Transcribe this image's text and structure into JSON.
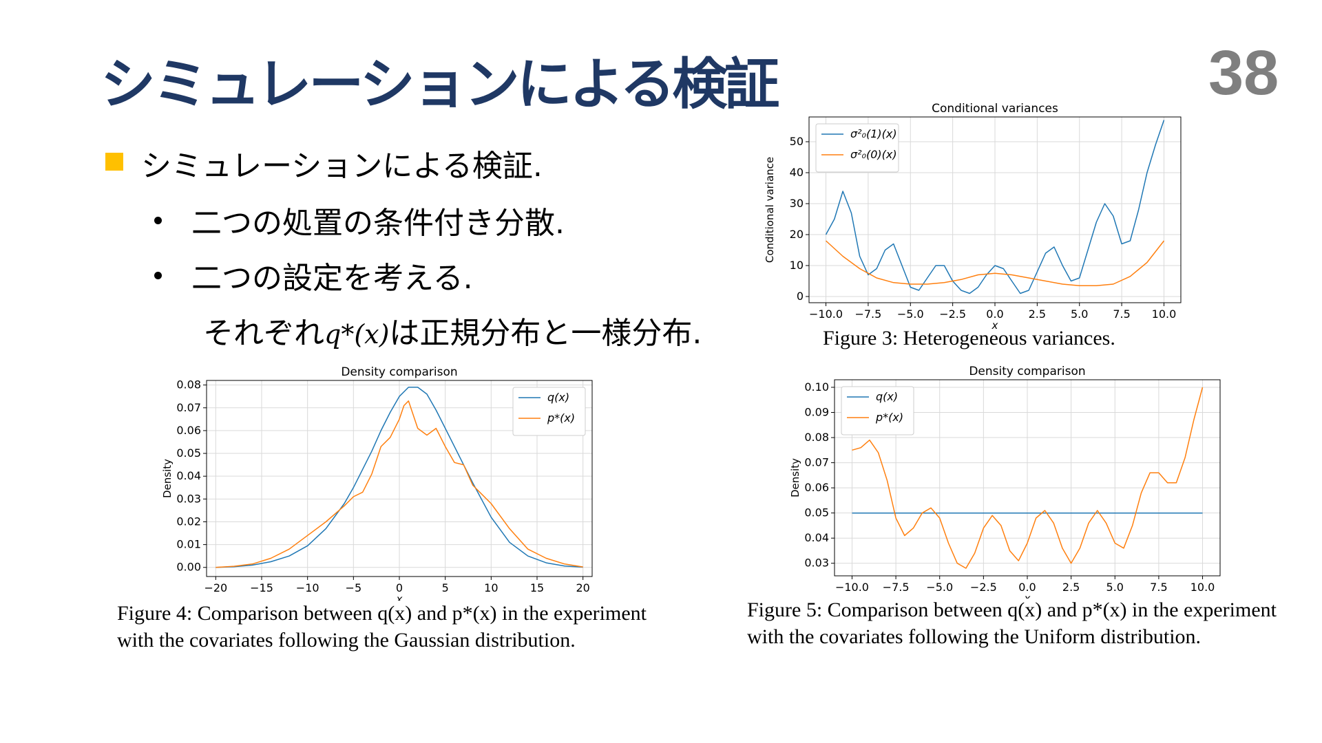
{
  "slide": {
    "title": "シミュレーションによる検証",
    "page_number": "38",
    "bullet_main": "シミュレーションによる検証.",
    "sub_bullets": [
      "二つの処置の条件付き分散.",
      "二つの設定を考える."
    ],
    "continuation_prefix": "それぞれ",
    "continuation_formula": "q*(x)",
    "continuation_suffix": "は正規分布と一様分布."
  },
  "captions": {
    "fig3": "Figure 3: Heterogeneous variances.",
    "fig4": "Figure 4: Comparison between q(x) and p*(x) in the experiment with the covariates following the Gaussian distribution.",
    "fig5": "Figure 5: Comparison between q(x) and p*(x) in the experiment with the covariates following the Uniform distribution."
  },
  "colors": {
    "title": "#1f3864",
    "page_number": "#7f7f7f",
    "bullet": "#ffc000",
    "blue": "#1f77b4",
    "orange": "#ff7f0e"
  },
  "chart_data": [
    {
      "id": "fig3",
      "type": "line",
      "title": "Conditional variances",
      "xlabel": "x",
      "ylabel": "Conditional variance",
      "xlim": [
        -11,
        11
      ],
      "ylim": [
        -2,
        58
      ],
      "xticks": [
        -10,
        -7.5,
        -5,
        -2.5,
        0,
        2.5,
        5,
        7.5,
        10
      ],
      "xtick_labels": [
        "−10.0",
        "−7.5",
        "−5.0",
        "−2.5",
        "0.0",
        "2.5",
        "5.0",
        "7.5",
        "10.0"
      ],
      "yticks": [
        0,
        10,
        20,
        30,
        40,
        50
      ],
      "ytick_labels": [
        "0",
        "10",
        "20",
        "30",
        "40",
        "50"
      ],
      "grid": true,
      "legend": "upper-left",
      "series": [
        {
          "name": "σ²₀(1)(x)",
          "color": "#1f77b4",
          "x": [
            -10,
            -9.5,
            -9,
            -8.5,
            -8,
            -7.5,
            -7,
            -6.5,
            -6,
            -5.5,
            -5,
            -4.5,
            -4,
            -3.5,
            -3,
            -2.5,
            -2,
            -1.5,
            -1,
            -0.5,
            0,
            0.5,
            1,
            1.5,
            2,
            2.5,
            3,
            3.5,
            4,
            4.5,
            5,
            5.5,
            6,
            6.5,
            7,
            7.5,
            8,
            8.5,
            9,
            9.5,
            10
          ],
          "y": [
            20,
            25,
            34,
            27,
            13,
            7,
            9,
            15,
            17,
            10,
            3,
            2,
            6,
            10,
            10,
            5,
            2,
            1,
            3,
            7,
            10,
            9,
            5,
            1,
            2,
            8,
            14,
            16,
            10,
            5,
            6,
            15,
            24,
            30,
            26,
            17,
            18,
            28,
            40,
            49,
            57
          ]
        },
        {
          "name": "σ²₀(0)(x)",
          "color": "#ff7f0e",
          "x": [
            -10,
            -9,
            -8,
            -7,
            -6,
            -5,
            -4,
            -3,
            -2,
            -1,
            0,
            1,
            2,
            3,
            4,
            5,
            6,
            7,
            8,
            9,
            10
          ],
          "y": [
            18,
            13,
            9,
            6,
            4.5,
            4,
            4,
            4.5,
            5.5,
            7,
            7.5,
            7,
            6,
            5,
            4,
            3.5,
            3.5,
            4,
            6.5,
            11,
            18
          ]
        }
      ]
    },
    {
      "id": "fig4",
      "type": "line",
      "title": "Density comparison",
      "xlabel": "x",
      "ylabel": "Density",
      "xlim": [
        -21,
        21
      ],
      "ylim": [
        -0.004,
        0.082
      ],
      "xticks": [
        -20,
        -15,
        -10,
        -5,
        0,
        5,
        10,
        15,
        20
      ],
      "xtick_labels": [
        "−20",
        "−15",
        "−10",
        "−5",
        "0",
        "5",
        "10",
        "15",
        "20"
      ],
      "yticks": [
        0,
        0.01,
        0.02,
        0.03,
        0.04,
        0.05,
        0.06,
        0.07,
        0.08
      ],
      "ytick_labels": [
        "0.00",
        "0.01",
        "0.02",
        "0.03",
        "0.04",
        "0.05",
        "0.06",
        "0.07",
        "0.08"
      ],
      "grid": true,
      "legend": "upper-right",
      "series": [
        {
          "name": "q(x)",
          "color": "#1f77b4",
          "x": [
            -20,
            -18,
            -16,
            -14,
            -12,
            -10,
            -8,
            -6,
            -5,
            -4,
            -3,
            -2,
            -1,
            0,
            1,
            2,
            3,
            4,
            5,
            6,
            7,
            8,
            10,
            12,
            14,
            16,
            18,
            20
          ],
          "y": [
            0,
            0.0003,
            0.001,
            0.0025,
            0.005,
            0.0095,
            0.017,
            0.028,
            0.035,
            0.043,
            0.051,
            0.06,
            0.068,
            0.075,
            0.079,
            0.079,
            0.076,
            0.069,
            0.061,
            0.053,
            0.045,
            0.037,
            0.022,
            0.011,
            0.005,
            0.002,
            0.0006,
            0.0001
          ]
        },
        {
          "name": "p*(x)",
          "color": "#ff7f0e",
          "x": [
            -20,
            -18,
            -16,
            -14,
            -12,
            -10,
            -8,
            -6,
            -5,
            -4,
            -3,
            -2,
            -1,
            0,
            0.5,
            1,
            2,
            3,
            4,
            5,
            6,
            7,
            8,
            9,
            10,
            12,
            14,
            16,
            18,
            20
          ],
          "y": [
            0,
            0.0005,
            0.0015,
            0.004,
            0.008,
            0.014,
            0.02,
            0.027,
            0.031,
            0.033,
            0.041,
            0.053,
            0.057,
            0.065,
            0.071,
            0.073,
            0.061,
            0.058,
            0.061,
            0.053,
            0.046,
            0.045,
            0.036,
            0.032,
            0.028,
            0.017,
            0.008,
            0.004,
            0.0015,
            0.0002
          ]
        }
      ]
    },
    {
      "id": "fig5",
      "type": "line",
      "title": "Density comparison",
      "xlabel": "x",
      "ylabel": "Density",
      "xlim": [
        -11,
        11
      ],
      "ylim": [
        0.025,
        0.103
      ],
      "xticks": [
        -10,
        -7.5,
        -5,
        -2.5,
        0,
        2.5,
        5,
        7.5,
        10
      ],
      "xtick_labels": [
        "−10.0",
        "−7.5",
        "−5.0",
        "−2.5",
        "0.0",
        "2.5",
        "5.0",
        "7.5",
        "10.0"
      ],
      "yticks": [
        0.03,
        0.04,
        0.05,
        0.06,
        0.07,
        0.08,
        0.09,
        0.1
      ],
      "ytick_labels": [
        "0.03",
        "0.04",
        "0.05",
        "0.06",
        "0.07",
        "0.08",
        "0.09",
        "0.10"
      ],
      "grid": true,
      "legend": "upper-left",
      "series": [
        {
          "name": "q(x)",
          "color": "#1f77b4",
          "x": [
            -10,
            10
          ],
          "y": [
            0.05,
            0.05
          ]
        },
        {
          "name": "p*(x)",
          "color": "#ff7f0e",
          "x": [
            -10,
            -9.5,
            -9,
            -8.5,
            -8,
            -7.5,
            -7,
            -6.5,
            -6,
            -5.5,
            -5,
            -4.5,
            -4,
            -3.5,
            -3,
            -2.5,
            -2,
            -1.5,
            -1,
            -0.5,
            0,
            0.5,
            1,
            1.5,
            2,
            2.5,
            3,
            3.5,
            4,
            4.5,
            5,
            5.5,
            6,
            6.5,
            7,
            7.5,
            8,
            8.5,
            9,
            9.5,
            10
          ],
          "y": [
            0.075,
            0.076,
            0.079,
            0.074,
            0.063,
            0.048,
            0.041,
            0.044,
            0.05,
            0.052,
            0.048,
            0.038,
            0.03,
            0.028,
            0.034,
            0.044,
            0.049,
            0.045,
            0.035,
            0.031,
            0.038,
            0.048,
            0.051,
            0.046,
            0.036,
            0.03,
            0.036,
            0.046,
            0.051,
            0.046,
            0.038,
            0.036,
            0.045,
            0.058,
            0.066,
            0.066,
            0.062,
            0.062,
            0.072,
            0.087,
            0.1
          ]
        }
      ]
    }
  ]
}
